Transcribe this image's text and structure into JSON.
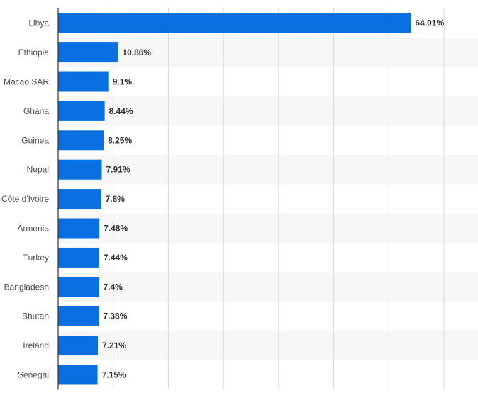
{
  "chart_data": {
    "type": "bar",
    "orientation": "horizontal",
    "title": "",
    "xlabel": "",
    "ylabel": "",
    "categories": [
      "Libya",
      "Ethiopia",
      "Macao SAR",
      "Ghana",
      "Guinea",
      "Nepal",
      "Côte d'Ivoire",
      "Armenia",
      "Turkey",
      "Bangladesh",
      "Bhutan",
      "Ireland",
      "Senegal"
    ],
    "values": [
      64.01,
      10.86,
      9.1,
      8.44,
      8.25,
      7.91,
      7.8,
      7.48,
      7.44,
      7.4,
      7.38,
      7.21,
      7.15
    ],
    "value_labels": [
      "64.01%",
      "10.86%",
      "9.1%",
      "8.44%",
      "8.25%",
      "7.91%",
      "7.8%",
      "7.48%",
      "7.44%",
      "7.4%",
      "7.38%",
      "7.21%",
      "7.15%"
    ],
    "xlim": [
      0,
      70
    ],
    "x_gridlines": [
      10,
      20,
      30,
      40,
      50,
      60,
      70
    ],
    "grid": true,
    "alternating_row_bands": true,
    "colors": {
      "bar": "#0a6fe0",
      "band": "#f7f7f7",
      "grid": "#d9d9d9",
      "axis": "#333333"
    }
  }
}
